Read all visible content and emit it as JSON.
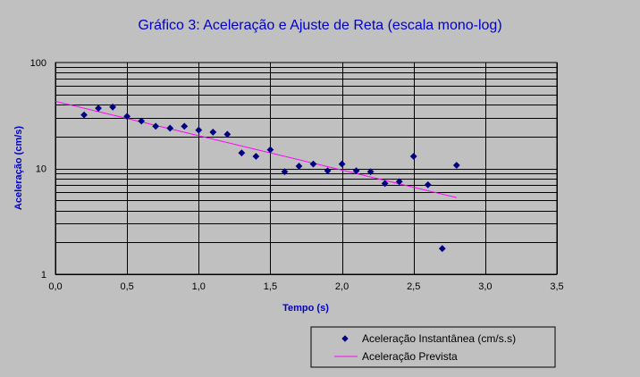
{
  "chart_data": {
    "type": "scatter",
    "title": "Gráfico 3: Aceleração e Ajuste de Reta (escala mono-log)",
    "xlabel": "Tempo (s)",
    "ylabel": "Aceleração (cm/s)",
    "xlim": [
      0,
      3.5
    ],
    "ylim": [
      1,
      100
    ],
    "yscale": "log",
    "grid": true,
    "legend_position": "bottom-right",
    "x_ticks": [
      "0,0",
      "0,5",
      "1,0",
      "1,5",
      "2,0",
      "2,5",
      "3,0",
      "3,5"
    ],
    "y_ticks": [
      "1",
      "10",
      "100"
    ],
    "series": [
      {
        "name": "Aceleração Instantânea (cm/s.s)",
        "kind": "points",
        "color": "#000080",
        "marker": "diamond",
        "x": [
          0.2,
          0.3,
          0.4,
          0.5,
          0.6,
          0.7,
          0.8,
          0.9,
          1.0,
          1.1,
          1.2,
          1.3,
          1.4,
          1.5,
          1.6,
          1.7,
          1.8,
          1.9,
          2.0,
          2.1,
          2.2,
          2.3,
          2.4,
          2.5,
          2.6,
          2.7,
          2.8
        ],
        "y": [
          32,
          37,
          38,
          31,
          28,
          25,
          24,
          25,
          23,
          22,
          21,
          14,
          13,
          15,
          9.3,
          10.5,
          11,
          9.5,
          11,
          9.5,
          9.3,
          7.2,
          7.5,
          13,
          7,
          1.75,
          10.7
        ]
      },
      {
        "name": "Aceleração Prevista",
        "kind": "line",
        "color": "#ff00ff",
        "x": [
          0.0,
          2.8
        ],
        "y": [
          43,
          5.3
        ]
      }
    ]
  }
}
